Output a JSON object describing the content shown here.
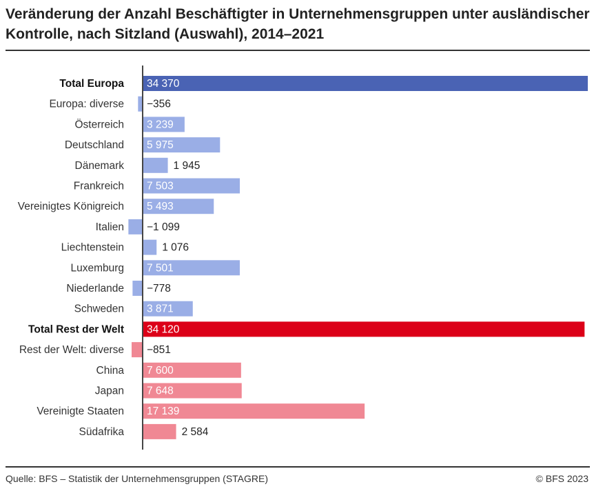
{
  "chart_data": {
    "type": "bar",
    "orientation": "horizontal",
    "title": "Veränderung der Anzahl Beschäftigter in Unternehmensgruppen unter ausländischer Kontrolle, nach Sitzland (Auswahl), 2014–2021",
    "categories": [
      "Total Europa",
      "Europa: diverse",
      "Österreich",
      "Deutschland",
      "Dänemark",
      "Frankreich",
      "Vereinigtes Königreich",
      "Italien",
      "Liechtenstein",
      "Luxemburg",
      "Niederlande",
      "Schweden",
      "Total Rest der Welt",
      "Rest der Welt: diverse",
      "China",
      "Japan",
      "Vereinigte Staaten",
      "Südafrika"
    ],
    "values": [
      34370,
      -356,
      3239,
      5975,
      1945,
      7503,
      5493,
      -1099,
      1076,
      7501,
      -778,
      3871,
      34120,
      -851,
      7600,
      7648,
      17139,
      2584
    ],
    "value_labels": [
      "34 370",
      "−356",
      "3 239",
      "5 975",
      "1 945",
      "7 503",
      "5 493",
      "−1 099",
      "1 076",
      "7 501",
      "−778",
      "3 871",
      "34 120",
      "−851",
      "7 600",
      "7 648",
      "17 139",
      "2 584"
    ],
    "bold": [
      true,
      false,
      false,
      false,
      false,
      false,
      false,
      false,
      false,
      false,
      false,
      false,
      true,
      false,
      false,
      false,
      false,
      false
    ],
    "groups": [
      "total-europa",
      "europa",
      "europa",
      "europa",
      "europa",
      "europa",
      "europa",
      "europa",
      "europa",
      "europa",
      "europa",
      "europa",
      "total-welt",
      "welt",
      "welt",
      "welt",
      "welt",
      "welt"
    ],
    "colors": {
      "total-europa": "#4a63b4",
      "europa": "#9aaee6",
      "total-welt": "#dc0018",
      "welt": "#f08894"
    },
    "xlim": [
      -1099,
      34370
    ],
    "grid": false,
    "legend": "none"
  },
  "footer": {
    "source": "Quelle: BFS – Statistik der Unternehmensgruppen (STAGRE)",
    "copyright": "© BFS 2023"
  }
}
